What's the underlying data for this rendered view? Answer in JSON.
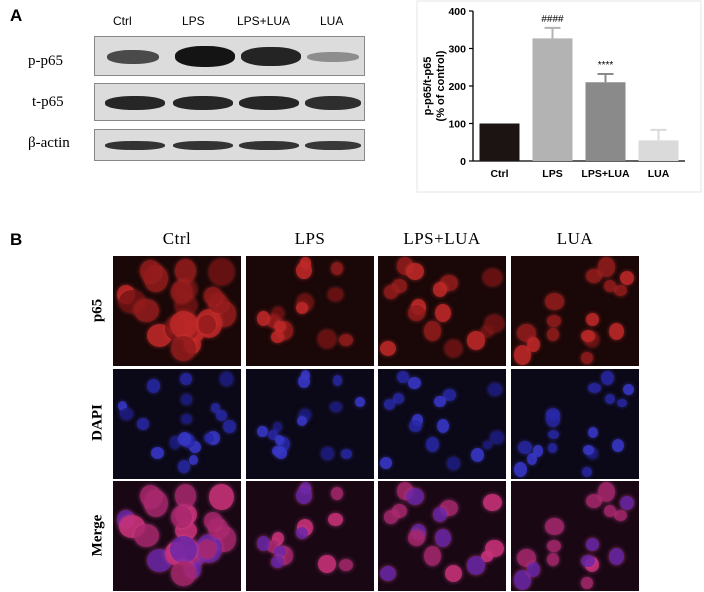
{
  "panels": {
    "a": "A",
    "b": "B"
  },
  "blot": {
    "lane_labels": [
      "Ctrl",
      "LPS",
      "LPS+LUA",
      "LUA"
    ],
    "rows": [
      "p-p65",
      "t-p65",
      "β-actin"
    ]
  },
  "chart_data": {
    "type": "bar",
    "categories": [
      "Ctrl",
      "LPS",
      "LPS+LUA",
      "LUA"
    ],
    "values": [
      100,
      327,
      210,
      55
    ],
    "errors": [
      0,
      28,
      22,
      28
    ],
    "significance": [
      "",
      "####",
      "****",
      ""
    ],
    "colors": [
      "#1c1412",
      "#b3b3b3",
      "#8a8a8a",
      "#dadada"
    ],
    "ylabel_line1": "p-p65/t-p65",
    "ylabel_line2": "(% of control)",
    "ylim": [
      0,
      400
    ],
    "yticks": [
      0,
      100,
      200,
      300,
      400
    ]
  },
  "microscopy": {
    "columns": [
      "Ctrl",
      "LPS",
      "LPS+LUA",
      "LUA"
    ],
    "rows": [
      "p65",
      "DAPI",
      "Merge"
    ]
  }
}
